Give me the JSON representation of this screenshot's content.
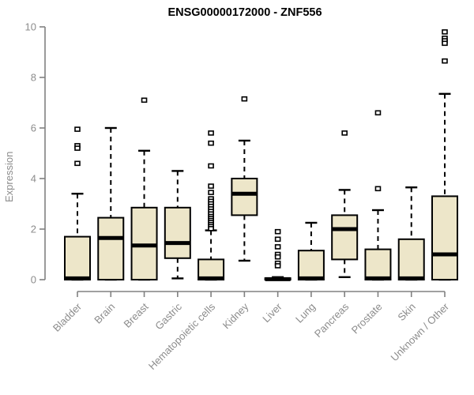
{
  "title": "ENSG00000172000 - ZNF556",
  "colors": {
    "background": "#ffffff",
    "box_fill": "#ede6c9",
    "box_stroke": "#000000",
    "median_stroke": "#000000",
    "whisker_stroke": "#000000",
    "outlier_stroke": "#000000",
    "outlier_fill": "#ffffff",
    "axis_line_gray": "#808080",
    "label_gray": "#8c8c8c",
    "title_color": "#000000"
  },
  "chart_data": {
    "type": "boxplot",
    "title": "ENSG00000172000 - ZNF556",
    "xlabel": "",
    "ylabel": "Expression",
    "ylim": [
      0,
      10
    ],
    "yticks": [
      0,
      2,
      4,
      6,
      8,
      10
    ],
    "grid": false,
    "legend": "none",
    "categories": [
      "Bladder",
      "Brain",
      "Breast",
      "Gastric",
      "Hematopoietic cells",
      "Kidney",
      "Liver",
      "Lung",
      "Pancreas",
      "Prostate",
      "Skin",
      "Unknown / Other"
    ],
    "series": [
      {
        "category": "Bladder",
        "whisker_low": 0,
        "q1": 0,
        "median": 0.05,
        "q3": 1.7,
        "whisker_high": 3.4,
        "outliers": [
          5.95,
          5.3,
          5.2,
          4.6
        ]
      },
      {
        "category": "Brain",
        "whisker_low": 0,
        "q1": 0,
        "median": 1.65,
        "q3": 2.45,
        "whisker_high": 6.0,
        "outliers": []
      },
      {
        "category": "Breast",
        "whisker_low": 0,
        "q1": 0,
        "median": 1.35,
        "q3": 2.85,
        "whisker_high": 5.1,
        "outliers": [
          7.1
        ]
      },
      {
        "category": "Gastric",
        "whisker_low": 0.05,
        "q1": 0.85,
        "median": 1.45,
        "q3": 2.85,
        "whisker_high": 4.3,
        "outliers": []
      },
      {
        "category": "Hematopoietic cells",
        "whisker_low": 0,
        "q1": 0,
        "median": 0.05,
        "q3": 0.8,
        "whisker_high": 1.95,
        "outliers": [
          5.8,
          5.4,
          4.5,
          3.7,
          3.45,
          3.2,
          3.1,
          3.0,
          2.9,
          2.8,
          2.7,
          2.6,
          2.5,
          2.42,
          2.34,
          2.26,
          2.18,
          2.1,
          2.02
        ]
      },
      {
        "category": "Kidney",
        "whisker_low": 0.75,
        "q1": 2.55,
        "median": 3.4,
        "q3": 4.0,
        "whisker_high": 5.5,
        "outliers": [
          7.15
        ]
      },
      {
        "category": "Liver",
        "whisker_low": 0,
        "q1": 0,
        "median": 0.02,
        "q3": 0.06,
        "whisker_high": 0.1,
        "outliers": [
          1.9,
          1.6,
          1.3,
          1.0,
          0.9,
          0.65,
          0.55
        ]
      },
      {
        "category": "Lung",
        "whisker_low": 0,
        "q1": 0,
        "median": 0.05,
        "q3": 1.15,
        "whisker_high": 2.25,
        "outliers": []
      },
      {
        "category": "Pancreas",
        "whisker_low": 0.1,
        "q1": 0.8,
        "median": 2.0,
        "q3": 2.55,
        "whisker_high": 3.55,
        "outliers": [
          5.8
        ]
      },
      {
        "category": "Prostate",
        "whisker_low": 0,
        "q1": 0,
        "median": 0.05,
        "q3": 1.2,
        "whisker_high": 2.75,
        "outliers": [
          6.6,
          3.6
        ]
      },
      {
        "category": "Skin",
        "whisker_low": 0,
        "q1": 0,
        "median": 0.05,
        "q3": 1.6,
        "whisker_high": 3.65,
        "outliers": []
      },
      {
        "category": "Unknown / Other",
        "whisker_low": 0,
        "q1": 0,
        "median": 1.0,
        "q3": 3.3,
        "whisker_high": 7.35,
        "outliers": [
          9.8,
          9.55,
          9.45,
          9.35,
          8.65
        ]
      }
    ]
  }
}
